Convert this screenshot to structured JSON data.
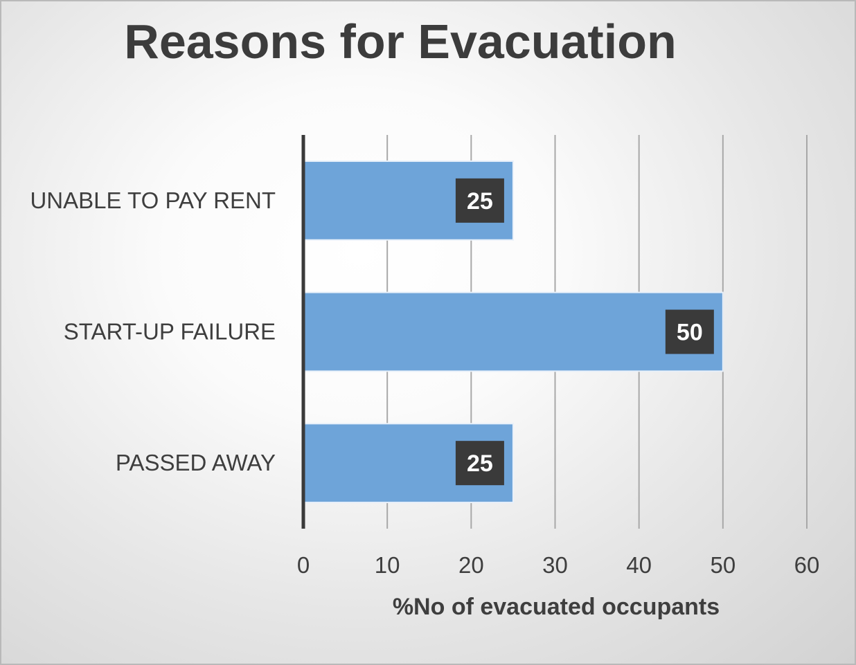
{
  "chart_data": {
    "type": "bar",
    "orientation": "horizontal",
    "title": "Reasons for Evacuation",
    "xlabel": "%No of evacuated occupants",
    "ylabel": "",
    "categories": [
      "UNABLE TO PAY RENT",
      "START-UP FAILURE",
      "PASSED AWAY"
    ],
    "values": [
      25,
      50,
      25
    ],
    "data_labels": [
      "25",
      "50",
      "25"
    ],
    "xlim": [
      0,
      60
    ],
    "xticks": [
      0,
      10,
      20,
      30,
      40,
      50,
      60
    ],
    "xtick_labels": [
      "0",
      "10",
      "20",
      "30",
      "40",
      "50",
      "60"
    ],
    "grid": "vertical",
    "legend": "none",
    "colors": {
      "bar_fill": "#6ea4d9",
      "bar_stroke": "#e8f0fa",
      "label_box": "#3a3a3a",
      "label_text": "#ffffff",
      "grid": "#a8a8a8",
      "axis": "#3a3a3a"
    }
  }
}
